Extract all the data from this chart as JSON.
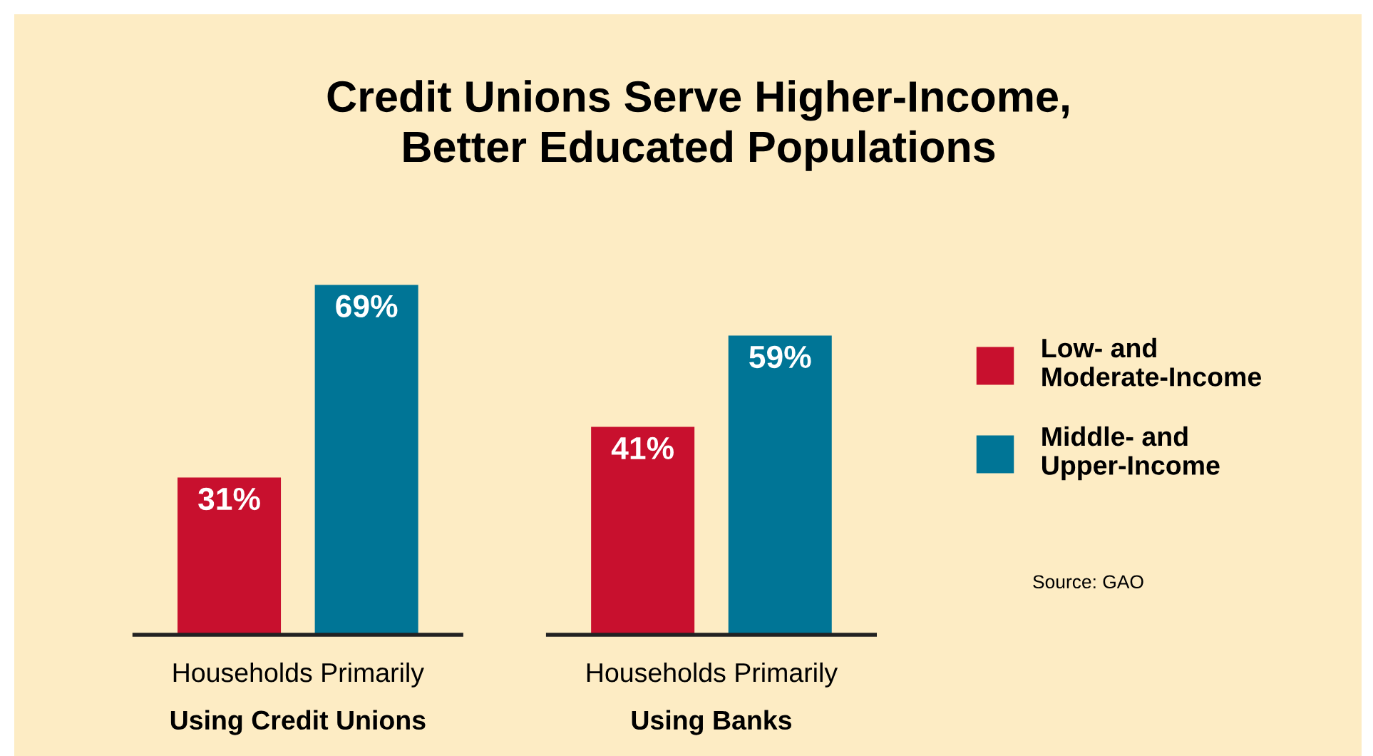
{
  "chart_data": {
    "type": "bar",
    "title": "Credit Unions Serve Higher-Income,\nBetter Educated Populations",
    "categories": [
      "Households Primarily\nUsing Credit Unions",
      "Households Primarily\nUsing Banks"
    ],
    "series": [
      {
        "name": "Low- and\nModerate-Income",
        "color": "#c8102e",
        "values": [
          31,
          41
        ],
        "value_labels": [
          "31%",
          "41%"
        ]
      },
      {
        "name": "Middle- and\nUpper-Income",
        "color": "#007596",
        "values": [
          69,
          59
        ],
        "value_labels": [
          "69%",
          "59%"
        ]
      }
    ],
    "legend": "right",
    "annotations": [
      "Source: GAO"
    ]
  }
}
